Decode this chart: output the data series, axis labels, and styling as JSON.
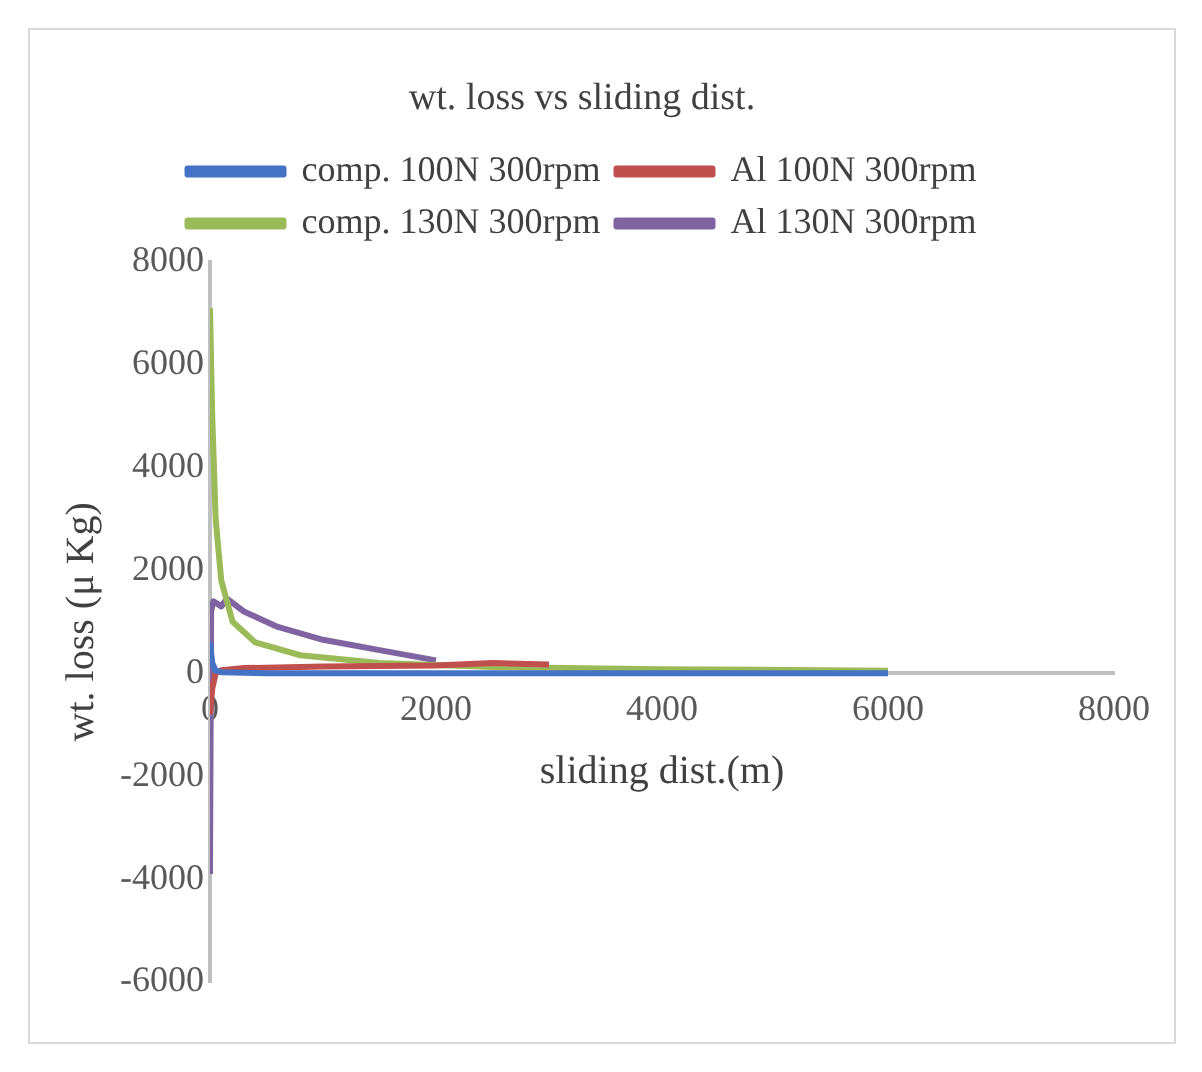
{
  "chart_data": {
    "type": "line",
    "title": "wt. loss vs sliding dist.",
    "xlabel": "sliding dist.(m)",
    "ylabel": "wt. loss (μ Kg)",
    "xlim": [
      0,
      8000
    ],
    "xticks": [
      0,
      2000,
      4000,
      6000,
      8000
    ],
    "ylim": [
      -6000,
      8000
    ],
    "yticks": [
      -6000,
      -4000,
      -2000,
      0,
      2000,
      4000,
      6000,
      8000
    ],
    "grid": false,
    "legend": "top",
    "marker": "none",
    "line_style": "solid",
    "series": [
      {
        "name": "comp. 100N 300rpm",
        "color": "#4472c4",
        "x": [
          0,
          20,
          50,
          100,
          500,
          6000
        ],
        "values": [
          600,
          200,
          50,
          20,
          0,
          0
        ]
      },
      {
        "name": "Al 100N 300rpm",
        "color": "#c0504d",
        "x": [
          0,
          20,
          50,
          100,
          300,
          1000,
          2000,
          2500,
          3000
        ],
        "values": [
          -800,
          -300,
          0,
          60,
          100,
          130,
          150,
          200,
          170
        ]
      },
      {
        "name": "comp. 130N 300rpm",
        "color": "#9bbb59",
        "x": [
          0,
          20,
          50,
          100,
          200,
          400,
          800,
          1500,
          2500,
          4000,
          6000
        ],
        "values": [
          7100,
          5000,
          3000,
          1800,
          1000,
          600,
          350,
          200,
          120,
          80,
          50
        ]
      },
      {
        "name": "Al 130N 300rpm",
        "color": "#8064a2",
        "x": [
          0,
          10,
          30,
          100,
          150,
          300,
          600,
          1000,
          1500,
          2000
        ],
        "values": [
          -3900,
          1200,
          1400,
          1300,
          1450,
          1200,
          900,
          650,
          450,
          250
        ]
      }
    ]
  }
}
